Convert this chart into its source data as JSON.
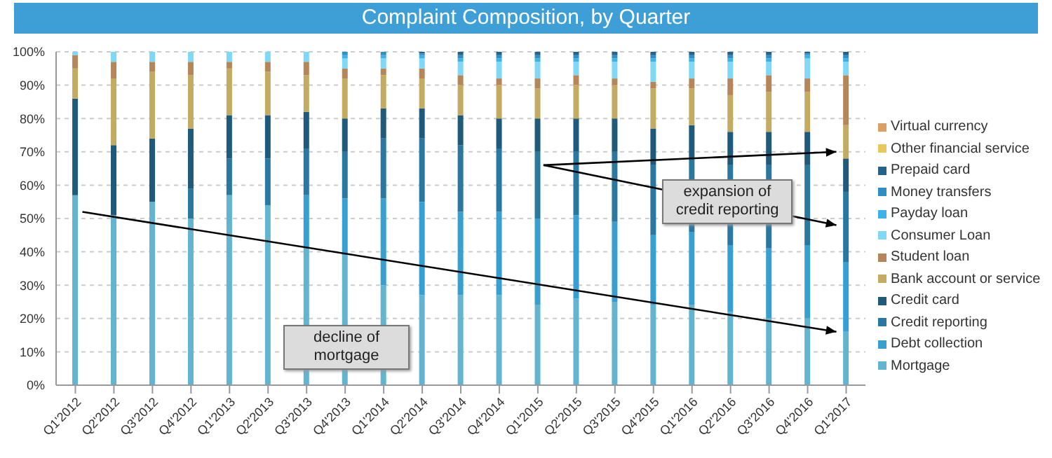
{
  "chart_data": {
    "type": "bar",
    "title": "Complaint Composition, by Quarter",
    "stacked": true,
    "grid": "y",
    "legend": "right",
    "categories": [
      "Q1'2012",
      "Q2'2012",
      "Q3'2012",
      "Q4'2012",
      "Q1'2013",
      "Q2'2013",
      "Q3'2013",
      "Q4'2013",
      "Q1'2014",
      "Q2'2014",
      "Q3'2014",
      "Q4'2014",
      "Q1'2015",
      "Q2'2015",
      "Q3'2015",
      "Q4'2015",
      "Q1'2016",
      "Q2'2016",
      "Q3'2016",
      "Q4'2016",
      "Q1'2017"
    ],
    "ylim": [
      0,
      100
    ],
    "yticks": [
      {
        "value": 0,
        "label": "0%"
      },
      {
        "value": 10,
        "label": "10%"
      },
      {
        "value": 20,
        "label": "20%"
      },
      {
        "value": 30,
        "label": "30%"
      },
      {
        "value": 40,
        "label": "40%"
      },
      {
        "value": 50,
        "label": "50%"
      },
      {
        "value": 60,
        "label": "60%"
      },
      {
        "value": 70,
        "label": "70%"
      },
      {
        "value": 80,
        "label": "80%"
      },
      {
        "value": 90,
        "label": "90%"
      },
      {
        "value": 100,
        "label": "100%"
      }
    ],
    "series": [
      {
        "name": "Mortgage",
        "color": "#62b4cf",
        "values": [
          57,
          51,
          55,
          50,
          57,
          54,
          41,
          39,
          30,
          27,
          27,
          27,
          24,
          26,
          25,
          24,
          24,
          22,
          20,
          20,
          16
        ]
      },
      {
        "name": "Debt collection",
        "color": "#37a0d1",
        "values": [
          0,
          0,
          0,
          0,
          0,
          0,
          16,
          17,
          26,
          28,
          25,
          25,
          26,
          25,
          24,
          21,
          22,
          20,
          21,
          22,
          21
        ]
      },
      {
        "name": "Credit reporting",
        "color": "#2a77a0",
        "values": [
          0,
          0,
          0,
          9,
          11,
          14,
          14,
          14,
          18,
          19,
          20,
          19,
          20,
          19,
          21,
          21,
          22,
          24,
          25,
          24,
          21
        ]
      },
      {
        "name": "Credit card",
        "color": "#1f5a7a",
        "values": [
          29,
          21,
          19,
          18,
          13,
          13,
          11,
          10,
          9,
          9,
          9,
          9,
          10,
          10,
          10,
          11,
          10,
          10,
          10,
          10,
          10
        ]
      },
      {
        "name": "Bank account or service",
        "color": "#c3ac62",
        "values": [
          9,
          20,
          20,
          16,
          14,
          13,
          11,
          12,
          10,
          9,
          9,
          10,
          9,
          10,
          10,
          12,
          11,
          11,
          12,
          12,
          10
        ]
      },
      {
        "name": "Student loan",
        "color": "#b5865a",
        "values": [
          4,
          5,
          3,
          4,
          2,
          3,
          4,
          3,
          2,
          3,
          3,
          2,
          3,
          3,
          2,
          2,
          3,
          5,
          5,
          4,
          15
        ]
      },
      {
        "name": "Consumer Loan",
        "color": "#7fd8f5",
        "values": [
          1,
          3,
          3,
          3,
          3,
          3,
          3,
          3,
          3,
          3,
          4,
          5,
          5,
          4,
          5,
          6,
          5,
          5,
          4,
          6,
          4
        ]
      },
      {
        "name": "Payday loan",
        "color": "#3bb3e8",
        "values": [
          0,
          0,
          0,
          0,
          0,
          0,
          0,
          1,
          1,
          1,
          1,
          1,
          1,
          1,
          1,
          1,
          1,
          1,
          1,
          1,
          1
        ]
      },
      {
        "name": "Money transfers",
        "color": "#2f8fc4",
        "values": [
          0,
          0,
          0,
          0,
          0,
          0,
          0,
          1,
          1,
          0.5,
          1,
          1,
          1,
          1,
          1,
          1,
          1,
          1,
          1,
          0.5,
          1
        ]
      },
      {
        "name": "Prepaid card",
        "color": "#23628a",
        "values": [
          0,
          0,
          0,
          0,
          0,
          0,
          0,
          0,
          0,
          0.5,
          1,
          1,
          1,
          1,
          1,
          1,
          1,
          1,
          1,
          0.5,
          1
        ]
      },
      {
        "name": "Other financial service",
        "color": "#e8c85a",
        "values": [
          0,
          0,
          0,
          0,
          0,
          0,
          0,
          0,
          0,
          0,
          0,
          0,
          0,
          0,
          0,
          0,
          0,
          0,
          0,
          0,
          0
        ]
      },
      {
        "name": "Virtual currency",
        "color": "#d9a066",
        "values": [
          0,
          0,
          0,
          0,
          0,
          0,
          0,
          0,
          0,
          0,
          0,
          0,
          0,
          0,
          0,
          0,
          0,
          0,
          0,
          0,
          0
        ]
      }
    ],
    "annotations": [
      "decline of mortgage",
      "expansion of credit reporting"
    ]
  }
}
